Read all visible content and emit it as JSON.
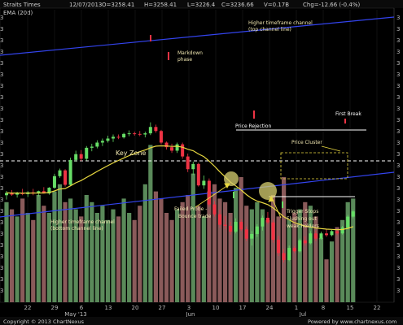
{
  "header": {
    "symbol": "Straits Times",
    "date": "12/07/2013",
    "open": "O=3258.41",
    "high": "H=3258.41",
    "low": "L=3226.4",
    "close": "C=3236.66",
    "volume": "V=0.17B",
    "change": "Chg=-12.66 (-0.4%)",
    "indicator": "EMA (20d)"
  },
  "footer": {
    "copyright": "Copyright © 2013 ChartNexus",
    "powered": "Powered by www.chartnexus.com"
  },
  "annotations": {
    "higher_tf_top": "Higher timeframe channel",
    "higher_tf_top_sub": "(top channel line)",
    "markdown": "Markdown",
    "markdown_sub": "phase",
    "price_rejection": "Price Rejection",
    "price_cluster": "Price Cluster",
    "first_break": "First Break",
    "key_zone": "Key Zone",
    "higher_tf_bottom": "Higher timeframe channel",
    "higher_tf_bottom_sub": "(bottom channel line)",
    "failed_probe": "Failed Probe -",
    "failed_probe_sub": "Bounce trade",
    "trigger_stops": "Trigger Stops",
    "flushing": "Flushing out",
    "weak_holders": "weak holders"
  },
  "colors": {
    "up": "#66dd66",
    "down": "#ee3344",
    "ema": "#e8d840",
    "channel": "#3344ee",
    "volume_up": "#5a8a5a",
    "volume_down": "#8a5a5a",
    "grid": "#1a1a1a"
  },
  "chart_data": {
    "type": "candlestick",
    "xlabel_ticks": [
      "22",
      "29",
      "6",
      "13",
      "20",
      "27",
      "3",
      "10",
      "17",
      "24",
      "1",
      "8",
      "15",
      "22"
    ],
    "month_labels": [
      "May '13",
      "Jun",
      "Jul"
    ],
    "y_tick_label": "3",
    "series": [
      {
        "name": "EMA (20d)"
      }
    ],
    "candles": [
      {
        "o": 0.37,
        "h": 0.385,
        "l": 0.355,
        "c": 0.378
      },
      {
        "o": 0.378,
        "h": 0.388,
        "l": 0.368,
        "c": 0.372
      },
      {
        "o": 0.372,
        "h": 0.382,
        "l": 0.362,
        "c": 0.378
      },
      {
        "o": 0.378,
        "h": 0.392,
        "l": 0.37,
        "c": 0.374
      },
      {
        "o": 0.374,
        "h": 0.384,
        "l": 0.364,
        "c": 0.38
      },
      {
        "o": 0.38,
        "h": 0.392,
        "l": 0.37,
        "c": 0.376
      },
      {
        "o": 0.376,
        "h": 0.386,
        "l": 0.366,
        "c": 0.384
      },
      {
        "o": 0.384,
        "h": 0.398,
        "l": 0.376,
        "c": 0.376
      },
      {
        "o": 0.376,
        "h": 0.398,
        "l": 0.372,
        "c": 0.396
      },
      {
        "o": 0.396,
        "h": 0.444,
        "l": 0.392,
        "c": 0.436
      },
      {
        "o": 0.436,
        "h": 0.462,
        "l": 0.43,
        "c": 0.456
      },
      {
        "o": 0.456,
        "h": 0.46,
        "l": 0.4,
        "c": 0.406
      },
      {
        "o": 0.406,
        "h": 0.5,
        "l": 0.402,
        "c": 0.492
      },
      {
        "o": 0.492,
        "h": 0.524,
        "l": 0.486,
        "c": 0.512
      },
      {
        "o": 0.512,
        "h": 0.526,
        "l": 0.488,
        "c": 0.496
      },
      {
        "o": 0.496,
        "h": 0.54,
        "l": 0.49,
        "c": 0.534
      },
      {
        "o": 0.534,
        "h": 0.548,
        "l": 0.522,
        "c": 0.538
      },
      {
        "o": 0.538,
        "h": 0.56,
        "l": 0.532,
        "c": 0.552
      },
      {
        "o": 0.552,
        "h": 0.566,
        "l": 0.54,
        "c": 0.558
      },
      {
        "o": 0.558,
        "h": 0.576,
        "l": 0.552,
        "c": 0.566
      },
      {
        "o": 0.566,
        "h": 0.58,
        "l": 0.554,
        "c": 0.572
      },
      {
        "o": 0.572,
        "h": 0.58,
        "l": 0.564,
        "c": 0.57
      },
      {
        "o": 0.57,
        "h": 0.586,
        "l": 0.566,
        "c": 0.582
      },
      {
        "o": 0.582,
        "h": 0.594,
        "l": 0.574,
        "c": 0.584
      },
      {
        "o": 0.584,
        "h": 0.59,
        "l": 0.576,
        "c": 0.582
      },
      {
        "o": 0.582,
        "h": 0.592,
        "l": 0.574,
        "c": 0.58
      },
      {
        "o": 0.58,
        "h": 0.59,
        "l": 0.57,
        "c": 0.584
      },
      {
        "o": 0.584,
        "h": 0.622,
        "l": 0.578,
        "c": 0.606
      },
      {
        "o": 0.606,
        "h": 0.614,
        "l": 0.586,
        "c": 0.592
      },
      {
        "o": 0.592,
        "h": 0.596,
        "l": 0.546,
        "c": 0.552
      },
      {
        "o": 0.552,
        "h": 0.556,
        "l": 0.528,
        "c": 0.536
      },
      {
        "o": 0.536,
        "h": 0.548,
        "l": 0.516,
        "c": 0.524
      },
      {
        "o": 0.524,
        "h": 0.552,
        "l": 0.516,
        "c": 0.546
      },
      {
        "o": 0.546,
        "h": 0.552,
        "l": 0.496,
        "c": 0.504
      },
      {
        "o": 0.504,
        "h": 0.514,
        "l": 0.45,
        "c": 0.46
      },
      {
        "o": 0.46,
        "h": 0.486,
        "l": 0.44,
        "c": 0.478
      },
      {
        "o": 0.478,
        "h": 0.482,
        "l": 0.4,
        "c": 0.404
      },
      {
        "o": 0.404,
        "h": 0.438,
        "l": 0.392,
        "c": 0.42
      },
      {
        "o": 0.42,
        "h": 0.428,
        "l": 0.33,
        "c": 0.338
      },
      {
        "o": 0.338,
        "h": 0.35,
        "l": 0.296,
        "c": 0.304
      },
      {
        "o": 0.304,
        "h": 0.32,
        "l": 0.258,
        "c": 0.268
      },
      {
        "o": 0.268,
        "h": 0.298,
        "l": 0.254,
        "c": 0.264
      },
      {
        "o": 0.264,
        "h": 0.278,
        "l": 0.234,
        "c": 0.244
      },
      {
        "o": 0.244,
        "h": 0.29,
        "l": 0.238,
        "c": 0.278
      },
      {
        "o": 0.278,
        "h": 0.286,
        "l": 0.246,
        "c": 0.252
      },
      {
        "o": 0.252,
        "h": 0.262,
        "l": 0.212,
        "c": 0.22
      },
      {
        "o": 0.22,
        "h": 0.246,
        "l": 0.196,
        "c": 0.236
      },
      {
        "o": 0.236,
        "h": 0.27,
        "l": 0.226,
        "c": 0.262
      },
      {
        "o": 0.262,
        "h": 0.3,
        "l": 0.248,
        "c": 0.292
      },
      {
        "o": 0.292,
        "h": 0.312,
        "l": 0.27,
        "c": 0.276
      },
      {
        "o": 0.276,
        "h": 0.286,
        "l": 0.206,
        "c": 0.216
      },
      {
        "o": 0.216,
        "h": 0.23,
        "l": 0.16,
        "c": 0.17
      },
      {
        "o": 0.17,
        "h": 0.184,
        "l": 0.138,
        "c": 0.146
      },
      {
        "o": 0.146,
        "h": 0.196,
        "l": 0.142,
        "c": 0.188
      },
      {
        "o": 0.188,
        "h": 0.194,
        "l": 0.17,
        "c": 0.176
      },
      {
        "o": 0.176,
        "h": 0.22,
        "l": 0.172,
        "c": 0.214
      },
      {
        "o": 0.214,
        "h": 0.228,
        "l": 0.196,
        "c": 0.204
      },
      {
        "o": 0.204,
        "h": 0.246,
        "l": 0.2,
        "c": 0.238
      },
      {
        "o": 0.238,
        "h": 0.248,
        "l": 0.212,
        "c": 0.22
      },
      {
        "o": 0.22,
        "h": 0.244,
        "l": 0.216,
        "c": 0.238
      },
      {
        "o": 0.238,
        "h": 0.252,
        "l": 0.226,
        "c": 0.232
      },
      {
        "o": 0.232,
        "h": 0.25,
        "l": 0.228,
        "c": 0.246
      },
      {
        "o": 0.246,
        "h": 0.252,
        "l": 0.232,
        "c": 0.238
      },
      {
        "o": 0.238,
        "h": 0.264,
        "l": 0.234,
        "c": 0.258
      },
      {
        "o": 0.258,
        "h": 0.302,
        "l": 0.252,
        "c": 0.296
      },
      {
        "o": 0.296,
        "h": 0.32,
        "l": 0.29,
        "c": 0.314
      }
    ],
    "volume": [
      0.56,
      0.52,
      0.48,
      0.58,
      0.5,
      0.46,
      0.6,
      0.54,
      0.5,
      0.62,
      0.66,
      0.56,
      0.58,
      0.52,
      0.48,
      0.6,
      0.56,
      0.5,
      0.54,
      0.46,
      0.52,
      0.48,
      0.58,
      0.5,
      0.46,
      0.54,
      0.66,
      0.88,
      0.62,
      0.58,
      0.5,
      0.46,
      0.52,
      0.56,
      0.6,
      0.72,
      0.54,
      0.48,
      0.62,
      0.66,
      0.58,
      0.56,
      0.5,
      0.64,
      0.7,
      0.54,
      0.52,
      0.56,
      0.52,
      0.46,
      0.6,
      0.48,
      0.7,
      0.46,
      0.5,
      0.52,
      0.56,
      0.54,
      0.48,
      0.36,
      0.24,
      0.34,
      0.42,
      0.46,
      0.56,
      0.58
    ]
  }
}
